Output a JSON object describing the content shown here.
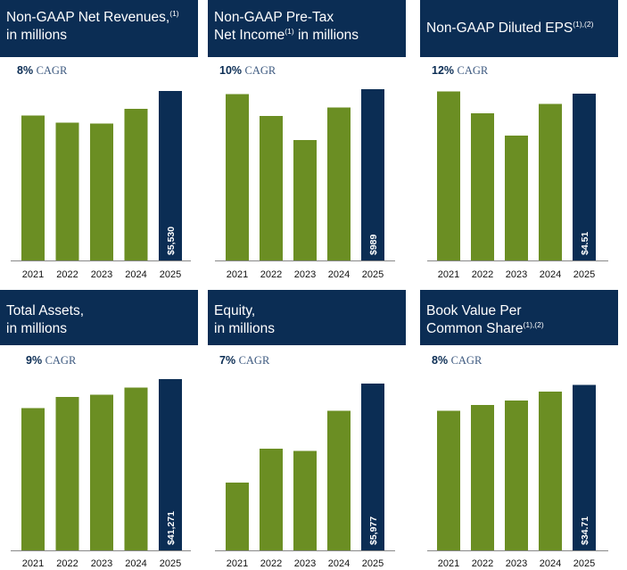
{
  "colors": {
    "header_bg": "#0b2d54",
    "bar_past": "#6b8e23",
    "bar_current": "#0b2d54",
    "axis": "#888888"
  },
  "chart_data": [
    {
      "type": "bar",
      "title": "Non-GAAP Net Revenues,",
      "title_line2": "in millions",
      "title_sup": "(1)",
      "cagr_pct": "8%",
      "cagr_word": "CAGR",
      "categories": [
        "2021",
        "2022",
        "2023",
        "2024",
        "2025"
      ],
      "values": [
        4720,
        4490,
        4460,
        4950,
        5530
      ],
      "ylim": [
        0,
        5700
      ],
      "labels": [
        "",
        "",
        "",
        "",
        "$5,530"
      ]
    },
    {
      "type": "bar",
      "title": "Non-GAAP Pre-Tax",
      "title_line2": "Net Income",
      "title_sup": "(1)",
      "title_line2_suffix": "in millions",
      "cagr_pct": "10%",
      "cagr_word": "CAGR",
      "categories": [
        "2021",
        "2022",
        "2023",
        "2024",
        "2025"
      ],
      "values": [
        960,
        835,
        695,
        885,
        989
      ],
      "ylim": [
        0,
        1010
      ],
      "labels": [
        "",
        "",
        "",
        "",
        "$989"
      ]
    },
    {
      "type": "bar",
      "title": "Non-GAAP Diluted EPS",
      "title_sup": "(1),(2)",
      "cagr_pct": "12%",
      "cagr_word": "CAGR",
      "categories": [
        "2021",
        "2022",
        "2023",
        "2024",
        "2025"
      ],
      "values": [
        4.57,
        3.97,
        3.37,
        4.23,
        4.51
      ],
      "ylim": [
        0,
        4.77
      ],
      "labels": [
        "",
        "",
        "",
        "",
        "$4.51"
      ]
    },
    {
      "type": "bar",
      "title": "Total Assets,",
      "title_line2": "in millions",
      "cagr_pct": "9%",
      "cagr_word": "CAGR",
      "categories": [
        "2021",
        "2022",
        "2023",
        "2024",
        "2025"
      ],
      "values": [
        34300,
        37000,
        37500,
        39200,
        41271
      ],
      "ylim": [
        0,
        41700
      ],
      "labels": [
        "",
        "",
        "",
        "",
        "$41,271"
      ]
    },
    {
      "type": "bar",
      "title": "Equity,",
      "title_line2": "in millions",
      "cagr_pct": "7%",
      "cagr_word": "CAGR",
      "categories": [
        "2021",
        "2022",
        "2023",
        "2024",
        "2025"
      ],
      "values": [
        2430,
        3640,
        3570,
        5000,
        5977
      ],
      "ylim": [
        0,
        6200
      ],
      "labels": [
        "",
        "",
        "",
        "",
        "$5,977"
      ]
    },
    {
      "type": "bar",
      "title": "Book Value Per",
      "title_line2": "Common Share",
      "title_sup": "(1),(2)",
      "cagr_pct": "8%",
      "cagr_word": "CAGR",
      "categories": [
        "2021",
        "2022",
        "2023",
        "2024",
        "2025"
      ],
      "values": [
        29.3,
        30.5,
        31.4,
        33.3,
        34.71
      ],
      "ylim": [
        0,
        36.3
      ],
      "labels": [
        "",
        "",
        "",
        "",
        "$34.71"
      ]
    }
  ]
}
